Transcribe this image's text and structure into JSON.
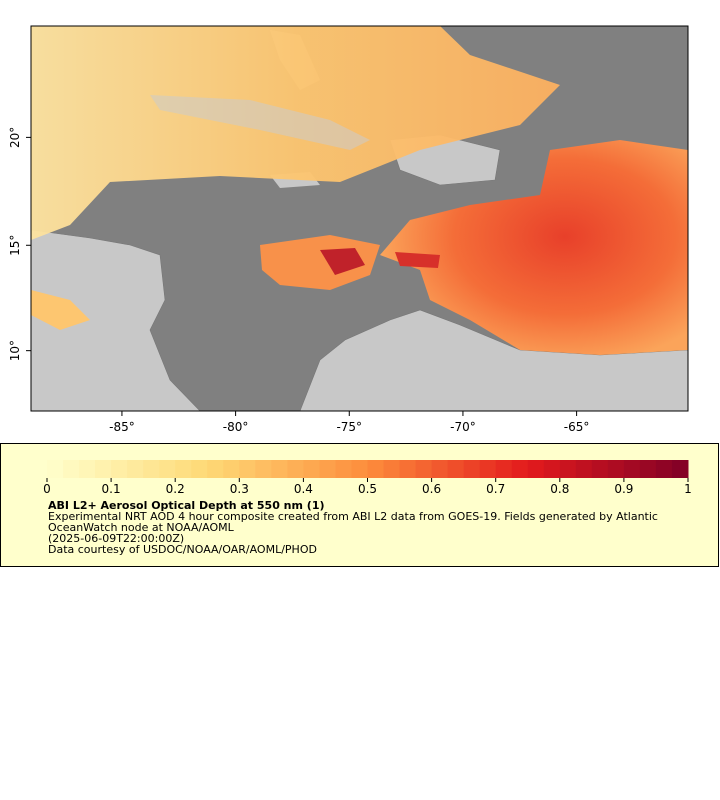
{
  "map": {
    "xticks": [
      {
        "value": -85,
        "label": "-85°"
      },
      {
        "value": -80,
        "label": "-80°"
      },
      {
        "value": -75,
        "label": "-75°"
      },
      {
        "value": -70,
        "label": "-70°"
      },
      {
        "value": -65,
        "label": "-65°"
      }
    ],
    "yticks": [
      {
        "value": 10,
        "label": "10°"
      },
      {
        "value": 15,
        "label": "15°"
      },
      {
        "value": 20,
        "label": "20°"
      }
    ],
    "xlim": [
      -89,
      -60.1
    ],
    "ylim": [
      7.1,
      25
    ]
  },
  "legend": {
    "colorbar": {
      "lim": [
        0,
        1
      ],
      "ticks": [
        0,
        0.1,
        0.2,
        0.3,
        0.4,
        0.5,
        0.6,
        0.7,
        0.8,
        0.9,
        1
      ]
    },
    "title": "ABI L2+ Aerosol Optical Depth at 550 nm (1)",
    "description": "Experimental NRT AOD 4 hour composite created from ABI L2 data from GOES-19. Fields generated by Atlantic OceanWatch node at NOAA/AOML",
    "time": "(2025-06-09T22:00:00Z)",
    "credit": "Data courtesy of USDOC/NOAA/OAR/AOML/PHOD"
  }
}
